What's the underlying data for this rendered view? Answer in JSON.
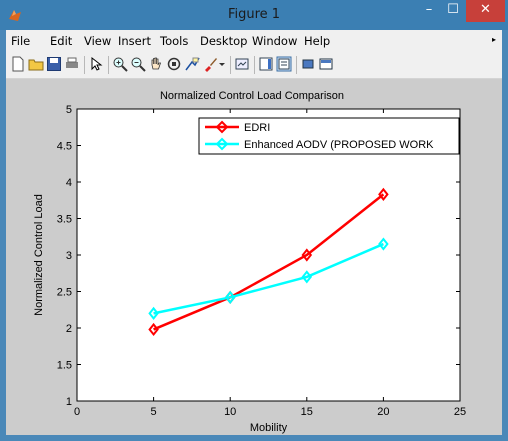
{
  "window": {
    "title": "Figure 1",
    "minimize_glyph": "–",
    "maximize_glyph": "☐",
    "close_glyph": "✕"
  },
  "menubar": {
    "items": [
      "File",
      "Edit",
      "View",
      "Insert",
      "Tools",
      "Desktop",
      "Window",
      "Help"
    ],
    "overflow_glyph": "▸"
  },
  "toolbar": {
    "icons": [
      "new-figure-icon",
      "open-file-icon",
      "save-icon",
      "print-icon",
      "select-arrow-icon",
      "zoom-in-icon",
      "zoom-out-icon",
      "pan-hand-icon",
      "rotate-3d-icon",
      "data-cursor-icon",
      "brush-icon",
      "brush-dropdown-icon",
      "link-plot-icon",
      "colorbar-icon",
      "legend-icon",
      "hide-plot-tools-icon",
      "show-plot-tools-icon"
    ]
  },
  "colors": {
    "edri": "#ff0000",
    "enhanced_aodv": "#00ffff",
    "figure_background": "#cccccc",
    "axes_background": "#ffffff"
  },
  "chart_data": {
    "type": "line",
    "title": "Normalized Control Load Comparison",
    "xlabel": "Mobility",
    "ylabel": "Normalized Control Load",
    "xlim": [
      0,
      25
    ],
    "ylim": [
      1,
      5
    ],
    "x_ticks": [
      0,
      5,
      10,
      15,
      20,
      25
    ],
    "y_ticks": [
      1,
      1.5,
      2,
      2.5,
      3,
      3.5,
      4,
      4.5,
      5
    ],
    "x_tick_labels": [
      "0",
      "5",
      "10",
      "15",
      "20",
      "25"
    ],
    "y_tick_labels": [
      "1",
      "1.5",
      "2",
      "2.5",
      "3",
      "3.5",
      "4",
      "4.5",
      "5"
    ],
    "grid": false,
    "legend_position": "top-right",
    "series": [
      {
        "name": "EDRI",
        "color": "#ff0000",
        "marker": "diamond",
        "x": [
          5,
          10,
          15,
          20
        ],
        "y": [
          1.98,
          2.42,
          3.0,
          3.83
        ]
      },
      {
        "name": "Enhanced AODV (PROPOSED WORK",
        "color": "#00ffff",
        "marker": "diamond",
        "x": [
          5,
          10,
          15,
          20
        ],
        "y": [
          2.2,
          2.42,
          2.7,
          3.15
        ]
      }
    ]
  }
}
